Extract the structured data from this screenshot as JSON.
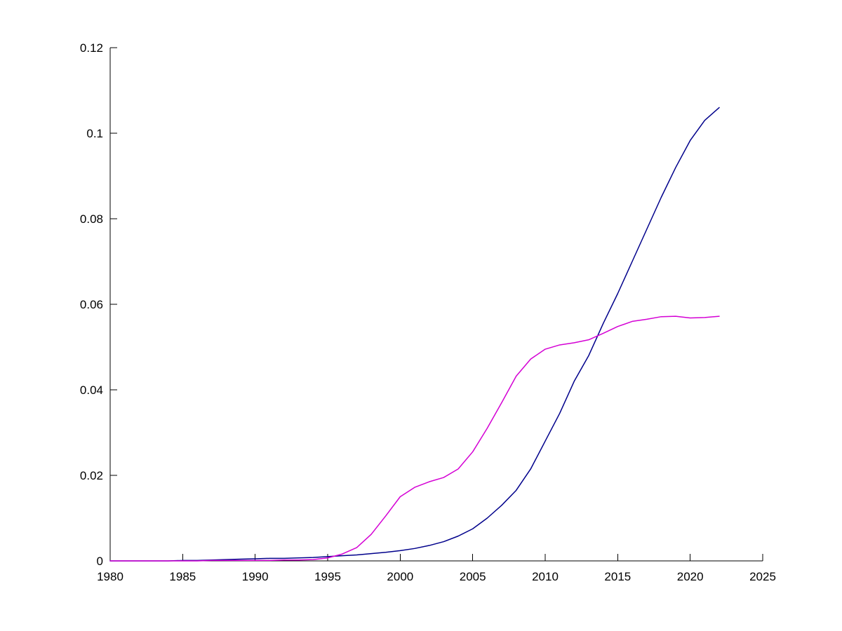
{
  "figure": {
    "background_color": "#ffffff",
    "axis_color": "#000000"
  },
  "chart_data": {
    "type": "line",
    "title": "",
    "xlabel": "",
    "ylabel": "",
    "xlim": [
      1980,
      2025
    ],
    "ylim": [
      0,
      0.12
    ],
    "grid": false,
    "legend": "none",
    "x_ticks": [
      1980,
      1985,
      1990,
      1995,
      2000,
      2005,
      2010,
      2015,
      2020,
      2025
    ],
    "x_tick_labels": [
      "1980",
      "1985",
      "1990",
      "1995",
      "2000",
      "2005",
      "2010",
      "2015",
      "2020",
      "2025"
    ],
    "y_ticks": [
      0,
      0.02,
      0.04,
      0.06,
      0.08,
      0.1,
      0.12
    ],
    "y_tick_labels": [
      "0",
      "0.02",
      "0.04",
      "0.06",
      "0.08",
      "0.1",
      "0.12"
    ],
    "x": [
      1980,
      1981,
      1982,
      1983,
      1984,
      1985,
      1986,
      1987,
      1988,
      1989,
      1990,
      1991,
      1992,
      1993,
      1994,
      1995,
      1996,
      1997,
      1998,
      1999,
      2000,
      2001,
      2002,
      2003,
      2004,
      2005,
      2006,
      2007,
      2008,
      2009,
      2010,
      2011,
      2012,
      2013,
      2014,
      2015,
      2016,
      2017,
      2018,
      2019,
      2020,
      2021,
      2022
    ],
    "series": [
      {
        "name": "blue-line",
        "color": "#00008B",
        "values": [
          0.0,
          0.0,
          0.0,
          0.0,
          0.0,
          0.0001,
          0.0001,
          0.0002,
          0.0003,
          0.0004,
          0.0005,
          0.0006,
          0.0006,
          0.0007,
          0.0008,
          0.001,
          0.0012,
          0.0014,
          0.0017,
          0.002,
          0.0024,
          0.0029,
          0.0036,
          0.0045,
          0.0058,
          0.0075,
          0.01,
          0.013,
          0.0165,
          0.0215,
          0.028,
          0.0345,
          0.042,
          0.048,
          0.0555,
          0.0625,
          0.07,
          0.0775,
          0.085,
          0.092,
          0.0983,
          0.103,
          0.106
        ]
      },
      {
        "name": "magenta-line",
        "color": "#D400D4",
        "values": [
          0.0,
          0.0,
          0.0,
          0.0,
          0.0,
          0.0,
          0.0,
          0.0001,
          0.0001,
          0.0001,
          0.0001,
          0.0001,
          0.0002,
          0.0002,
          0.0003,
          0.0007,
          0.0016,
          0.0031,
          0.0062,
          0.0105,
          0.015,
          0.0172,
          0.0185,
          0.0195,
          0.0215,
          0.0255,
          0.031,
          0.037,
          0.0432,
          0.0472,
          0.0495,
          0.0505,
          0.051,
          0.0517,
          0.0532,
          0.0548,
          0.056,
          0.0565,
          0.0571,
          0.0572,
          0.0568,
          0.0569,
          0.0572
        ]
      }
    ]
  }
}
